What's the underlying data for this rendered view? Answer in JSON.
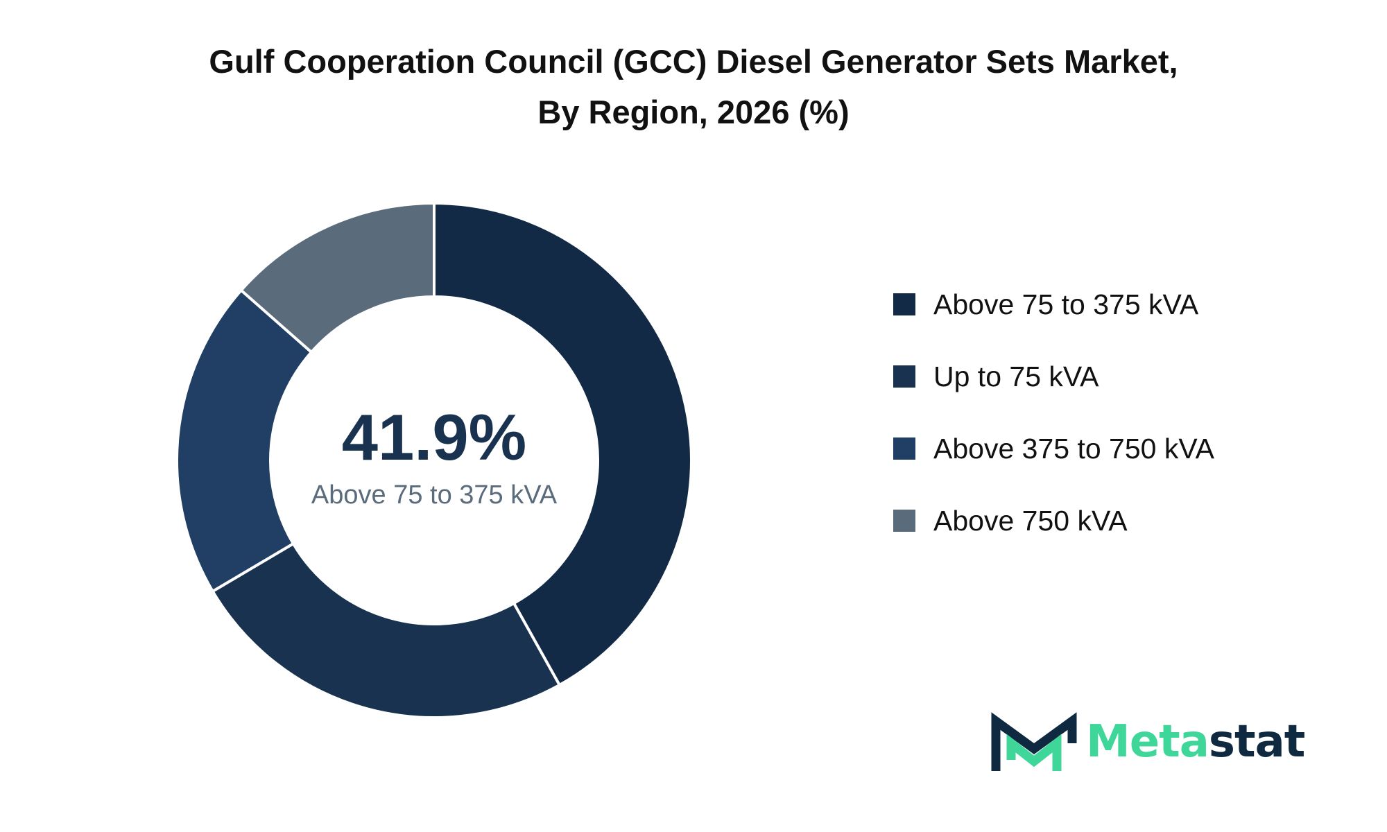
{
  "title_line1": "Gulf Cooperation Council (GCC) Diesel Generator Sets Market,",
  "title_line2": "By Region, 2026 (%)",
  "center": {
    "value": "41.9%",
    "label": "Above 75 to 375 kVA"
  },
  "chart_data": {
    "type": "pie",
    "donut": true,
    "title": "Gulf Cooperation Council (GCC) Diesel Generator Sets Market, By Region, 2026 (%)",
    "categories": [
      "Above 75 to 375 kVA",
      "Up to 75 kVA",
      "Above 375 to 750 kVA",
      "Above 750 kVA"
    ],
    "values": [
      41.9,
      24.6,
      20.0,
      13.5
    ],
    "colors": [
      "#122a45",
      "#18324f",
      "#213f64",
      "#5a6b7c"
    ],
    "legend_position": "right"
  },
  "colors": {
    "center_value": "#18324f",
    "center_label": "#5a6b7c",
    "logo_accent": "#3fd69a",
    "logo_dark": "#0f2940"
  },
  "logo": {
    "part1": "Meta",
    "part2": "stat"
  }
}
